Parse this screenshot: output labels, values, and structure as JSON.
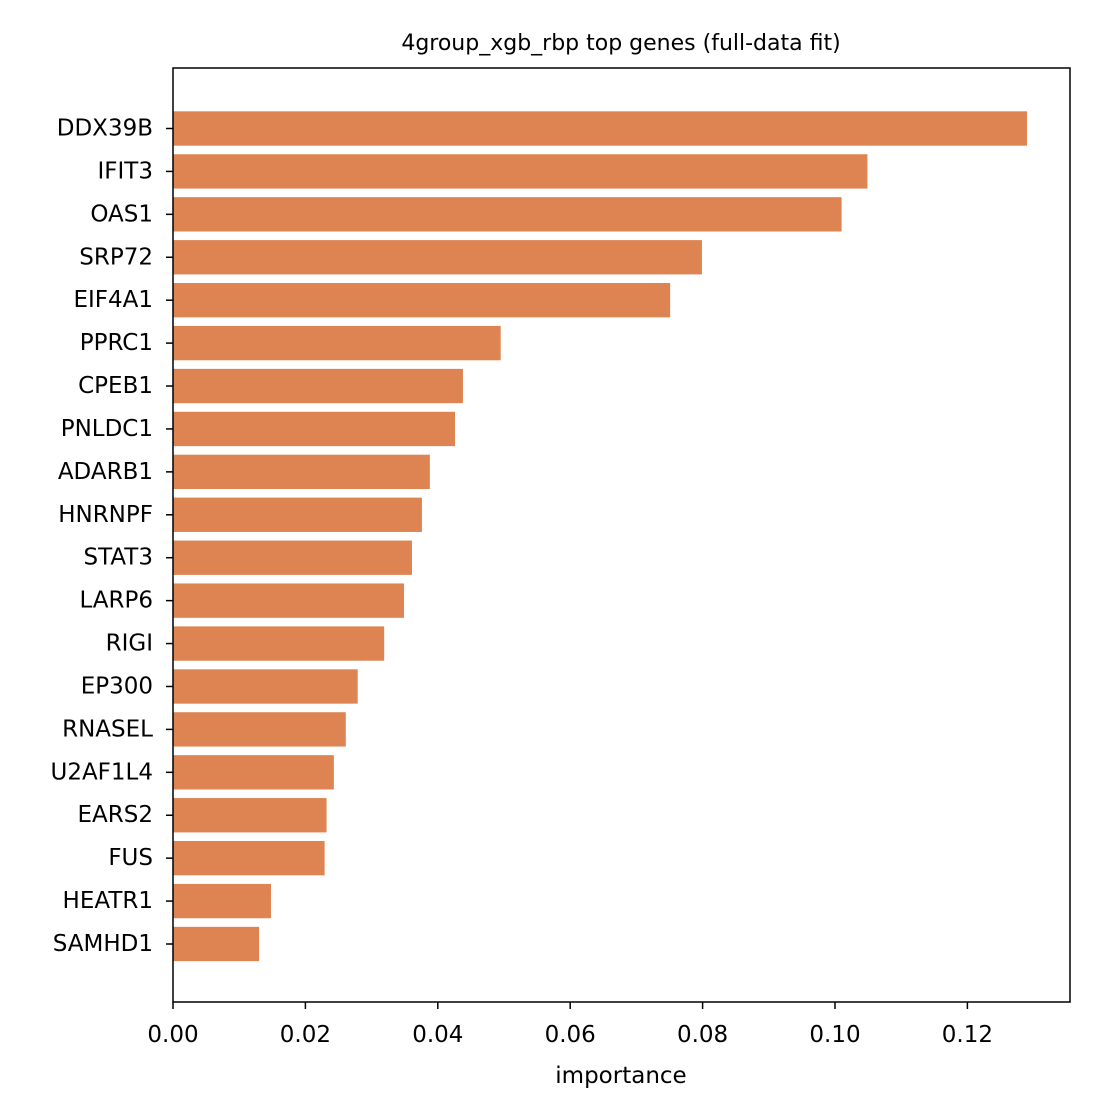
{
  "chart_data": {
    "type": "bar",
    "orientation": "horizontal",
    "title": "4group_xgb_rbp top genes (full-data fit)",
    "xlabel": "importance",
    "ylabel": "",
    "xlim": [
      0,
      0.1355
    ],
    "xticks": [
      0.0,
      0.02,
      0.04,
      0.06,
      0.08,
      0.1,
      0.12
    ],
    "xtick_labels": [
      "0.00",
      "0.02",
      "0.04",
      "0.06",
      "0.08",
      "0.10",
      "0.12"
    ],
    "grid": false,
    "legend": "none",
    "bar_color": "#dd8452",
    "categories": [
      "DDX39B",
      "IFIT3",
      "OAS1",
      "SRP72",
      "EIF4A1",
      "PPRC1",
      "CPEB1",
      "PNLDC1",
      "ADARB1",
      "HNRNPF",
      "STAT3",
      "LARP6",
      "RIGI",
      "EP300",
      "RNASEL",
      "U2AF1L4",
      "EARS2",
      "FUS",
      "HEATR1",
      "SAMHD1"
    ],
    "values": [
      0.129,
      0.1049,
      0.101,
      0.0799,
      0.0751,
      0.0495,
      0.0438,
      0.0426,
      0.0388,
      0.0376,
      0.0361,
      0.0349,
      0.0319,
      0.0279,
      0.0261,
      0.0243,
      0.0232,
      0.0229,
      0.0148,
      0.013
    ]
  }
}
